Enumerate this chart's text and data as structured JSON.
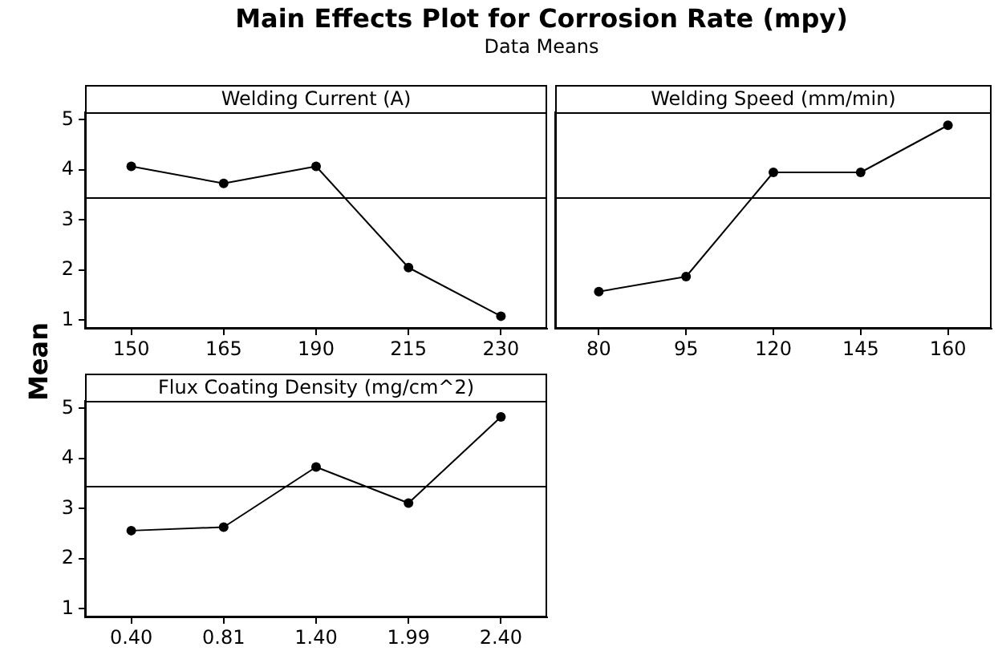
{
  "chart_data": [
    {
      "type": "line",
      "title": "Main Effects Plot for Corrosion Rate (mpy)",
      "subtitle": "Data Means",
      "ylabel": "Mean",
      "xlabel": "Welding Current (A)",
      "categories": [
        "150",
        "165",
        "190",
        "215",
        "230"
      ],
      "series": [
        {
          "color": "#000000",
          "values": [
            4.07,
            3.73,
            4.07,
            2.05,
            1.08
          ]
        }
      ],
      "ylim": [
        0.83,
        5.15
      ],
      "yticks": [
        1,
        2,
        3,
        4,
        5
      ],
      "ref_lines": [
        {
          "axis": "y",
          "value": 3.46,
          "color": "#000000"
        }
      ],
      "marker": "circle",
      "line_style": "solid",
      "grid": false,
      "legend": false
    },
    {
      "type": "line",
      "xlabel": "Welding Speed (mm/min)",
      "categories": [
        "80",
        "95",
        "120",
        "145",
        "160"
      ],
      "series": [
        {
          "color": "#000000",
          "values": [
            1.57,
            1.87,
            3.95,
            3.95,
            4.89
          ]
        }
      ],
      "ylim": [
        0.83,
        5.15
      ],
      "yticks": [
        1,
        2,
        3,
        4,
        5
      ],
      "tick_labels": "x",
      "ref_lines": [
        {
          "axis": "y",
          "value": 3.46,
          "color": "#000000"
        }
      ],
      "marker": "circle",
      "line_style": "solid",
      "grid": false,
      "legend": false
    },
    {
      "type": "line",
      "xlabel": "Flux Coating Density (mg/cm^2)",
      "categories": [
        "0.40",
        "0.81",
        "1.40",
        "1.99",
        "2.40"
      ],
      "series": [
        {
          "color": "#000000",
          "values": [
            2.56,
            2.63,
            3.83,
            3.11,
            4.83
          ]
        }
      ],
      "ylim": [
        0.83,
        5.15
      ],
      "yticks": [
        1,
        2,
        3,
        4,
        5
      ],
      "ref_lines": [
        {
          "axis": "y",
          "value": 3.46,
          "color": "#000000"
        }
      ],
      "marker": "circle",
      "line_style": "solid",
      "grid": false,
      "legend": false
    }
  ]
}
